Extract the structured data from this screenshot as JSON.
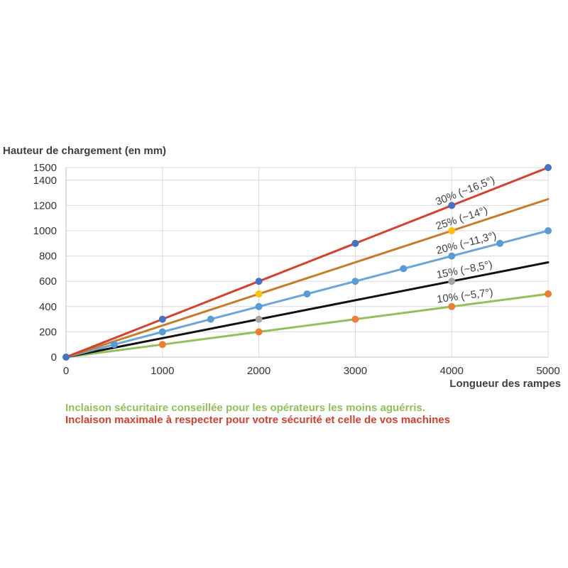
{
  "chart_data": {
    "type": "line",
    "ylabel": "Hauteur de chargement (en mm)",
    "xlabel": "Longueur des rampes",
    "xlim": [
      0,
      5000
    ],
    "ylim": [
      0,
      1500
    ],
    "x_ticks": [
      "0",
      "1000",
      "2000",
      "3000",
      "4000",
      "5000"
    ],
    "y_ticks": [
      "0",
      "200",
      "400",
      "600",
      "800",
      "1000",
      "1200",
      "1400",
      "1500"
    ],
    "grid": true,
    "series": [
      {
        "name": "10% (~5,7°)",
        "color": "#92c05a",
        "marker_color": "#ee7d31",
        "x": [
          0,
          1000,
          2000,
          3000,
          4000,
          5000
        ],
        "y": [
          0,
          100,
          200,
          300,
          400,
          500
        ]
      },
      {
        "name": "15% (~8,5°)",
        "color": "#111111",
        "marker_color": "#a5a5a5",
        "x": [
          0,
          2000,
          4000,
          5000
        ],
        "y": [
          0,
          300,
          600,
          750
        ]
      },
      {
        "name": "20% (~11,3°)",
        "color": "#6aa6d8",
        "marker_color": "#5b9bd5",
        "x": [
          0,
          500,
          1000,
          1500,
          2000,
          2500,
          3000,
          3500,
          4000,
          4500,
          5000
        ],
        "y": [
          0,
          100,
          200,
          300,
          400,
          500,
          600,
          700,
          800,
          900,
          1000
        ]
      },
      {
        "name": "25% (~14°)",
        "color": "#c97b2a",
        "marker_color": "#ffc000",
        "x": [
          0,
          2000,
          4000,
          5000
        ],
        "y": [
          0,
          500,
          1000,
          1250
        ]
      },
      {
        "name": "30% (~16,5°)",
        "color": "#d6402f",
        "marker_color": "#4472c4",
        "x": [
          0,
          1000,
          2000,
          3000,
          4000,
          5000
        ],
        "y": [
          0,
          300,
          600,
          900,
          1200,
          1500
        ]
      }
    ],
    "markers": [
      {
        "series": "10% (~5,7°)",
        "x": [
          1000,
          2000,
          3000,
          4000,
          5000
        ]
      },
      {
        "series": "15% (~8,5°)",
        "x": [
          2000,
          4000
        ]
      },
      {
        "series": "20% (~11,3°)",
        "x": [
          500,
          1000,
          1500,
          2000,
          2500,
          3000,
          3500,
          4000,
          4500,
          5000
        ]
      },
      {
        "series": "25% (~14°)",
        "x": [
          2000,
          4000
        ]
      },
      {
        "series": "30% (~16,5°)",
        "x": [
          0,
          1000,
          2000,
          3000,
          4000,
          5000
        ]
      }
    ]
  },
  "notes": {
    "safe": {
      "text": "Inclaison sécuritaire conseillée pour les opérateurs les moins aguérris.",
      "color": "#92c05a"
    },
    "max": {
      "text": "Inclaison maximale à respecter pour votre sécurité et celle de vos machines",
      "color": "#d6402f"
    }
  }
}
